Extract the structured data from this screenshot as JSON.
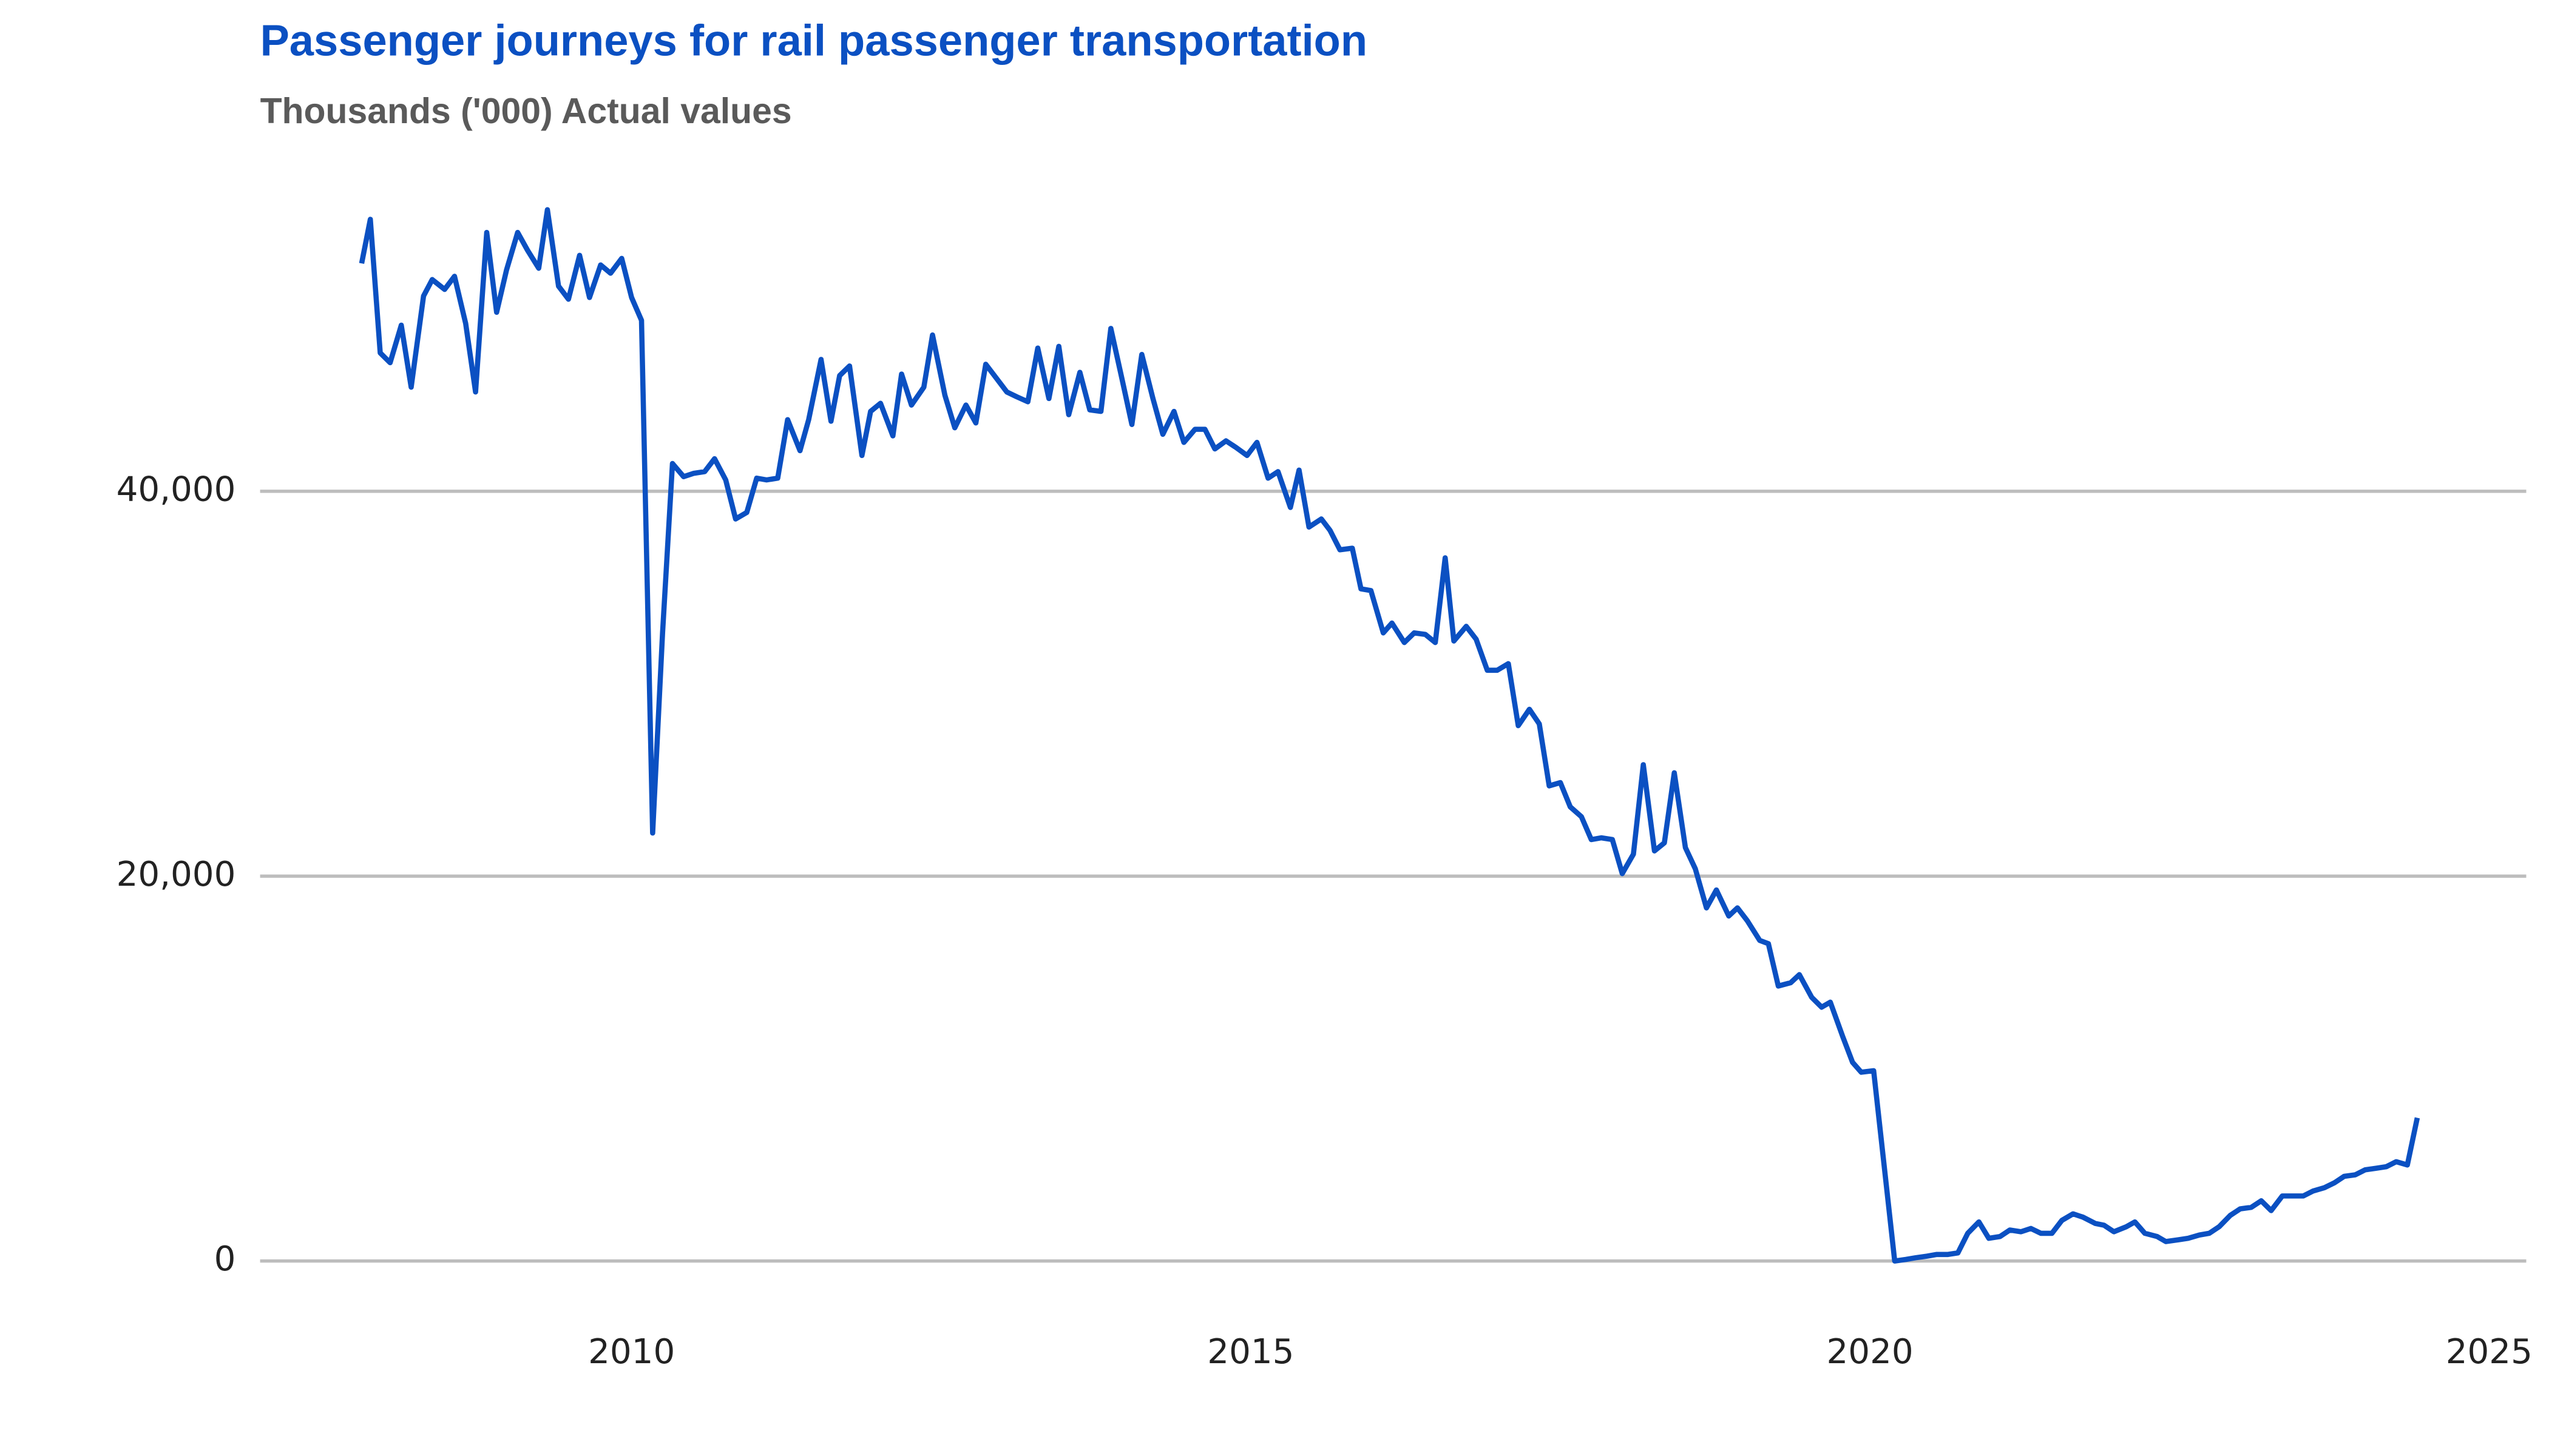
{
  "chart_data": {
    "type": "line",
    "title": "Passenger journeys for rail passenger transportation",
    "subtitle": "Thousands ('000) Actual values",
    "xlim": [
      2007,
      2025.3
    ],
    "xticks": [
      2010,
      2015,
      2020,
      2025
    ],
    "ylim": [
      0,
      57000
    ],
    "yticks": [
      0,
      {
        "value": 20000,
        "label": "20,000"
      },
      {
        "value": 40000,
        "label": "40,000"
      }
    ],
    "grid": true,
    "x": [
      2007.82,
      2007.89,
      2007.97,
      2008.05,
      2008.14,
      2008.22,
      2008.32,
      2008.39,
      2008.49,
      2008.57,
      2008.66,
      2008.74,
      2008.83,
      2008.91,
      2008.99,
      2009.08,
      2009.16,
      2009.25,
      2009.32,
      2009.41,
      2009.49,
      2009.58,
      2009.66,
      2009.75,
      2009.83,
      2009.92,
      2010.0,
      2010.08,
      2010.17,
      2010.25,
      2010.33,
      2010.42,
      2010.5,
      2010.59,
      2010.67,
      2010.76,
      2010.84,
      2010.93,
      2011.01,
      2011.09,
      2011.18,
      2011.26,
      2011.36,
      2011.43,
      2011.53,
      2011.61,
      2011.68,
      2011.76,
      2011.86,
      2011.93,
      2012.01,
      2012.11,
      2012.18,
      2012.26,
      2012.36,
      2012.43,
      2012.53,
      2012.61,
      2012.7,
      2012.78,
      2012.86,
      2012.95,
      2013.03,
      2013.11,
      2013.2,
      2013.28,
      2013.37,
      2013.45,
      2013.53,
      2013.62,
      2013.7,
      2013.79,
      2013.87,
      2013.96,
      2014.04,
      2014.12,
      2014.21,
      2014.29,
      2014.38,
      2014.46,
      2014.55,
      2014.63,
      2014.71,
      2014.8,
      2014.88,
      2014.97,
      2015.05,
      2015.14,
      2015.22,
      2015.32,
      2015.39,
      2015.47,
      2015.57,
      2015.64,
      2015.72,
      2015.82,
      2015.89,
      2015.97,
      2016.07,
      2016.14,
      2016.24,
      2016.32,
      2016.41,
      2016.49,
      2016.57,
      2016.64,
      2016.74,
      2016.82,
      2016.91,
      2016.99,
      2017.08,
      2017.16,
      2017.25,
      2017.33,
      2017.41,
      2017.5,
      2017.58,
      2017.67,
      2017.75,
      2017.83,
      2017.92,
      2018.0,
      2018.09,
      2018.17,
      2018.26,
      2018.34,
      2018.42,
      2018.51,
      2018.59,
      2018.68,
      2018.76,
      2018.86,
      2018.93,
      2019.01,
      2019.11,
      2019.18,
      2019.26,
      2019.36,
      2019.43,
      2019.53,
      2019.61,
      2019.68,
      2019.78,
      2019.86,
      2019.93,
      2020.03,
      2020.2,
      2020.29,
      2020.37,
      2020.46,
      2020.54,
      2020.63,
      2020.71,
      2020.79,
      2020.88,
      2020.96,
      2021.05,
      2021.13,
      2021.22,
      2021.3,
      2021.38,
      2021.47,
      2021.55,
      2021.64,
      2021.72,
      2021.82,
      2021.89,
      2021.97,
      2022.07,
      2022.14,
      2022.22,
      2022.32,
      2022.39,
      2022.49,
      2022.57,
      2022.66,
      2022.74,
      2022.82,
      2022.91,
      2022.99,
      2023.08,
      2023.16,
      2023.24,
      2023.33,
      2023.41,
      2023.5,
      2023.58,
      2023.67,
      2023.75,
      2023.83,
      2023.92,
      2024.0,
      2024.09,
      2024.17,
      2024.25,
      2024.34,
      2024.42
    ],
    "series": [
      {
        "color": "#0b50c2",
        "values": [
          51840,
          54130,
          47190,
          46680,
          48630,
          45410,
          50150,
          51000,
          50490,
          51170,
          48720,
          45160,
          53450,
          49300,
          51500,
          53450,
          52520,
          51590,
          54630,
          50660,
          49980,
          52260,
          50070,
          51760,
          51330,
          52100,
          50070,
          48880,
          22240,
          32640,
          41440,
          40760,
          40930,
          41020,
          41690,
          40590,
          38560,
          38900,
          40680,
          40590,
          40680,
          43720,
          42110,
          43720,
          46850,
          43640,
          46010,
          46510,
          41860,
          44150,
          44570,
          42880,
          46090,
          44480,
          45410,
          48120,
          44990,
          43300,
          44480,
          43550,
          46600,
          45840,
          45160,
          44910,
          44650,
          47440,
          44820,
          47530,
          43980,
          46180,
          44230,
          44150,
          48460,
          45840,
          43470,
          47110,
          44820,
          42960,
          44150,
          42540,
          43220,
          43220,
          42200,
          42620,
          42280,
          41860,
          42540,
          40680,
          41020,
          39160,
          41100,
          38140,
          38560,
          37970,
          36960,
          37040,
          34930,
          34840,
          32640,
          33150,
          32140,
          32640,
          32560,
          32140,
          36540,
          32220,
          32980,
          32310,
          30700,
          30700,
          31040,
          27820,
          28670,
          27910,
          24690,
          24860,
          23600,
          23090,
          21900,
          21990,
          21900,
          20130,
          21140,
          25790,
          21310,
          21730,
          25370,
          21480,
          20380,
          18350,
          19280,
          17930,
          18350,
          17680,
          16660,
          16490,
          14290,
          14460,
          14880,
          13700,
          13190,
          13450,
          11670,
          10320,
          9810,
          9890,
          0,
          80,
          170,
          250,
          340,
          340,
          420,
          1440,
          2030,
          1180,
          1270,
          1610,
          1520,
          1690,
          1440,
          1440,
          2110,
          2450,
          2280,
          1950,
          1860,
          1520,
          1780,
          2030,
          1440,
          1270,
          1010,
          1100,
          1180,
          1350,
          1440,
          1780,
          2370,
          2710,
          2790,
          3130,
          2620,
          3380,
          3380,
          3380,
          3640,
          3810,
          4060,
          4400,
          4480,
          4740,
          4820,
          4900,
          5160,
          4990,
          7440
        ]
      }
    ]
  }
}
